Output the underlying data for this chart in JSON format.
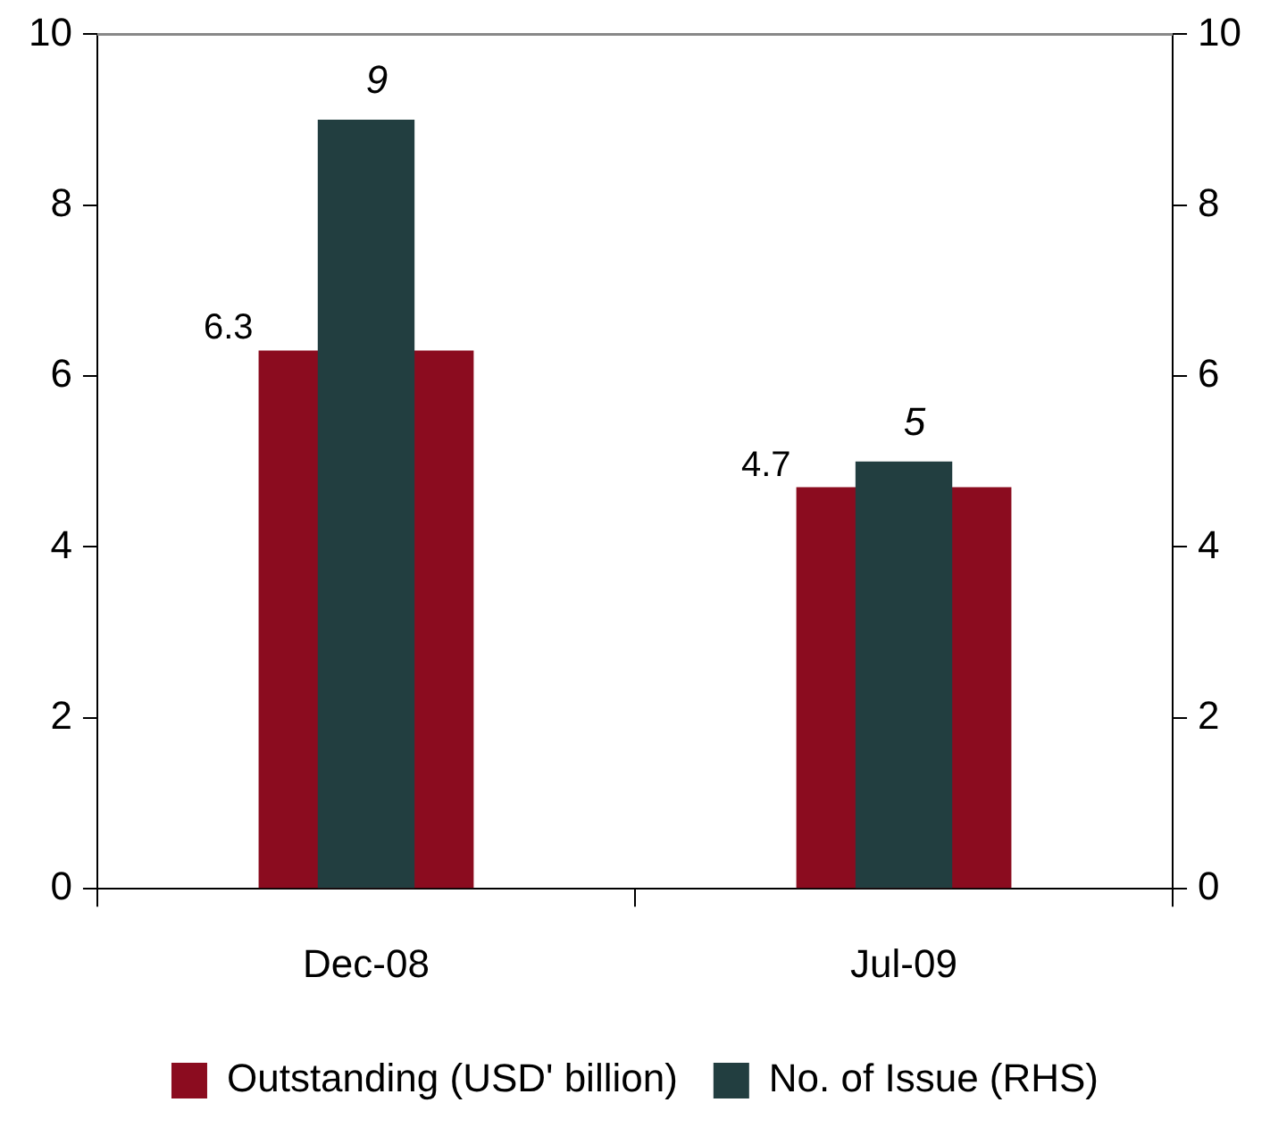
{
  "chart_data": {
    "type": "bar",
    "categories": [
      "Dec-08",
      "Jul-09"
    ],
    "series": [
      {
        "name": "Outstanding (USD' billion)",
        "color": "#8b0c1f",
        "values": [
          6.3,
          4.7
        ],
        "value_labels": [
          "6.3",
          "4.7"
        ]
      },
      {
        "name": "No. of Issue (RHS)",
        "color": "#223e40",
        "values": [
          9,
          5
        ],
        "axis": "y2",
        "value_labels": [
          "9",
          "5"
        ]
      }
    ],
    "ylim": [
      0,
      10
    ],
    "yticks": [
      0,
      2,
      4,
      6,
      8,
      10
    ],
    "y2lim": [
      0,
      10
    ],
    "y2ticks": [
      0,
      2,
      4,
      6,
      8,
      10
    ],
    "grid": false,
    "legend": "bottom"
  }
}
